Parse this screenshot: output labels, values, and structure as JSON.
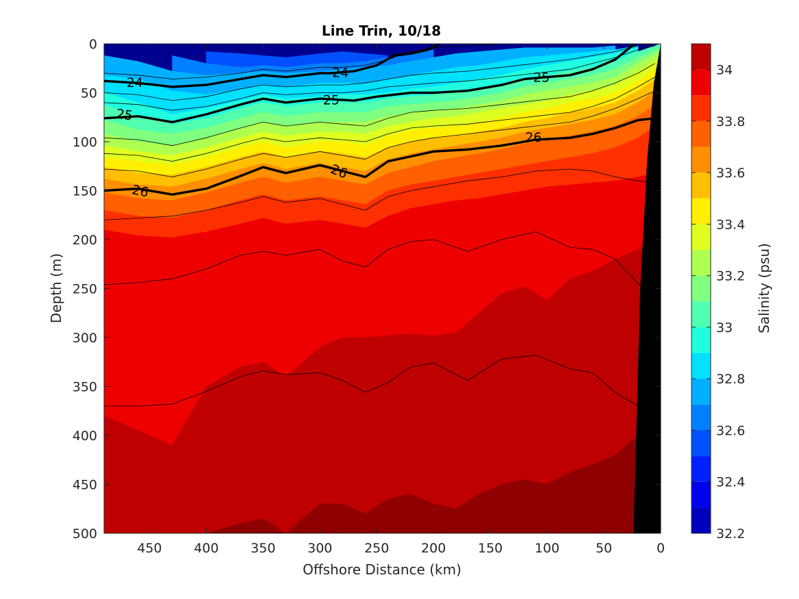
{
  "chart_data": {
    "type": "heatmap",
    "title": "Line Trin, 10/18",
    "xlabel": "Offshore Distance (km)",
    "ylabel": "Depth (m)",
    "colorbar_label": "Salinity (psu)",
    "xlim": [
      490,
      0
    ],
    "ylim": [
      0,
      500
    ],
    "x_reversed": true,
    "y_reversed": true,
    "x_ticks": [
      450,
      400,
      350,
      300,
      250,
      200,
      150,
      100,
      50,
      0
    ],
    "y_ticks": [
      0,
      50,
      100,
      150,
      200,
      250,
      300,
      350,
      400,
      450,
      500
    ],
    "colorbar": {
      "min": 32.2,
      "max": 34.1,
      "ticks": [
        32.2,
        32.4,
        32.6,
        32.8,
        33,
        33.2,
        33.4,
        33.6,
        33.8,
        34
      ],
      "levels": [
        32.2,
        32.3,
        32.4,
        32.5,
        32.6,
        32.7,
        32.8,
        32.9,
        33.0,
        33.1,
        33.2,
        33.3,
        33.4,
        33.5,
        33.6,
        33.7,
        33.8,
        33.9,
        34.0,
        34.1
      ],
      "colors": [
        "#00008F",
        "#0000BF",
        "#0000EF",
        "#0020FF",
        "#0050FF",
        "#0080FF",
        "#00B0FF",
        "#00E0FF",
        "#20FFDF",
        "#50FFAF",
        "#80FF80",
        "#AFFF50",
        "#DFFF20",
        "#FFEF00",
        "#FFBF00",
        "#FF8F00",
        "#FF6000",
        "#FF3000",
        "#EF0000",
        "#BF0000",
        "#8F0000"
      ]
    },
    "x": [
      490,
      460,
      430,
      400,
      370,
      350,
      330,
      300,
      280,
      260,
      240,
      220,
      200,
      180,
      160,
      140,
      120,
      100,
      80,
      60,
      40,
      20,
      0
    ],
    "salinity_boundaries": [
      {
        "level": 32.5,
        "depth": [
          null,
          null,
          null,
          8,
          10,
          12,
          14,
          10,
          8,
          10,
          12,
          null,
          null,
          null,
          null,
          null,
          null,
          null,
          null,
          null,
          null,
          null,
          null
        ]
      },
      {
        "level": 32.6,
        "depth": [
          null,
          null,
          12,
          20,
          24,
          22,
          24,
          20,
          20,
          18,
          14,
          10,
          6,
          null,
          null,
          null,
          null,
          null,
          null,
          null,
          null,
          null,
          null
        ]
      },
      {
        "level": 32.7,
        "depth": [
          12,
          18,
          28,
          32,
          30,
          28,
          30,
          28,
          26,
          24,
          22,
          18,
          14,
          10,
          8,
          6,
          4,
          4,
          4,
          4,
          2,
          null,
          null
        ]
      },
      {
        "level": 32.8,
        "depth": [
          32,
          36,
          48,
          52,
          46,
          42,
          44,
          40,
          40,
          40,
          36,
          32,
          28,
          24,
          22,
          18,
          14,
          12,
          10,
          8,
          6,
          2,
          null
        ]
      },
      {
        "level": 32.9,
        "depth": [
          50,
          60,
          72,
          66,
          58,
          52,
          56,
          54,
          52,
          52,
          50,
          46,
          44,
          40,
          36,
          32,
          26,
          22,
          18,
          14,
          10,
          4,
          null
        ]
      },
      {
        "level": 33.0,
        "depth": [
          62,
          74,
          82,
          76,
          66,
          60,
          64,
          60,
          60,
          60,
          56,
          54,
          52,
          50,
          46,
          42,
          36,
          32,
          28,
          24,
          18,
          8,
          0
        ]
      },
      {
        "level": 33.1,
        "depth": [
          78,
          88,
          92,
          86,
          76,
          70,
          74,
          70,
          70,
          70,
          64,
          62,
          60,
          58,
          54,
          50,
          44,
          40,
          36,
          32,
          26,
          14,
          4
        ]
      },
      {
        "level": 33.2,
        "depth": [
          92,
          100,
          104,
          96,
          86,
          80,
          84,
          80,
          80,
          80,
          74,
          70,
          68,
          66,
          62,
          58,
          52,
          48,
          44,
          40,
          34,
          20,
          8
        ]
      },
      {
        "level": 33.3,
        "depth": [
          104,
          110,
          114,
          106,
          96,
          90,
          94,
          90,
          90,
          92,
          84,
          80,
          76,
          74,
          70,
          66,
          62,
          58,
          52,
          48,
          42,
          28,
          14
        ]
      },
      {
        "level": 33.4,
        "depth": [
          116,
          120,
          124,
          116,
          106,
          100,
          106,
          100,
          100,
          104,
          94,
          88,
          86,
          84,
          80,
          76,
          70,
          66,
          60,
          56,
          50,
          38,
          22
        ]
      },
      {
        "level": 33.5,
        "depth": [
          126,
          132,
          134,
          126,
          116,
          110,
          116,
          110,
          112,
          116,
          106,
          100,
          96,
          94,
          90,
          86,
          80,
          76,
          70,
          66,
          60,
          48,
          32
        ]
      },
      {
        "level": 33.6,
        "depth": [
          138,
          144,
          146,
          138,
          128,
          122,
          128,
          122,
          126,
          130,
          118,
          112,
          108,
          104,
          100,
          96,
          90,
          86,
          82,
          78,
          72,
          60,
          44
        ]
      },
      {
        "level": 33.7,
        "depth": [
          152,
          158,
          160,
          152,
          142,
          136,
          142,
          136,
          140,
          144,
          132,
          126,
          120,
          116,
          112,
          108,
          102,
          98,
          94,
          90,
          84,
          74,
          58
        ]
      },
      {
        "level": 33.8,
        "depth": [
          170,
          176,
          178,
          170,
          160,
          154,
          160,
          156,
          160,
          164,
          150,
          144,
          140,
          136,
          132,
          128,
          124,
          120,
          116,
          112,
          106,
          96,
          80
        ]
      },
      {
        "level": 33.9,
        "depth": [
          190,
          196,
          198,
          192,
          184,
          178,
          184,
          180,
          184,
          188,
          176,
          168,
          164,
          160,
          158,
          154,
          150,
          146,
          144,
          142,
          140,
          136,
          130
        ]
      },
      {
        "level": 34.0,
        "depth": [
          380,
          395,
          410,
          350,
          330,
          325,
          340,
          310,
          300,
          300,
          298,
          296,
          298,
          295,
          275,
          255,
          248,
          262,
          240,
          232,
          220,
          210,
          200
        ]
      },
      {
        "level": 34.1,
        "depth": [
          500,
          500,
          500,
          500,
          490,
          485,
          500,
          470,
          470,
          480,
          465,
          460,
          470,
          475,
          460,
          450,
          445,
          450,
          438,
          430,
          420,
          400,
          380
        ]
      }
    ],
    "density_contours": [
      {
        "label": "24",
        "bold": true,
        "x": [
          490,
          460,
          430,
          400,
          370,
          350,
          330,
          300,
          290,
          270,
          250,
          235,
          220,
          205,
          195
        ],
        "depth": [
          38,
          40,
          44,
          42,
          36,
          32,
          34,
          30,
          30,
          28,
          22,
          12,
          10,
          6,
          0
        ]
      },
      {
        "label": "25",
        "bold": true,
        "x": [
          490,
          460,
          430,
          400,
          370,
          350,
          330,
          300,
          270,
          250,
          220,
          200,
          170,
          140,
          120,
          100,
          80,
          60,
          40,
          23
        ],
        "depth": [
          76,
          74,
          80,
          72,
          62,
          56,
          60,
          56,
          58,
          54,
          50,
          50,
          48,
          42,
          36,
          34,
          32,
          26,
          16,
          0
        ]
      },
      {
        "label": "26",
        "bold": true,
        "x": [
          490,
          460,
          430,
          400,
          370,
          350,
          330,
          300,
          280,
          260,
          240,
          220,
          200,
          170,
          140,
          110,
          80,
          60,
          40,
          20,
          5
        ],
        "depth": [
          150,
          148,
          154,
          148,
          135,
          126,
          132,
          124,
          130,
          136,
          120,
          115,
          110,
          108,
          104,
          98,
          96,
          92,
          86,
          78,
          76
        ]
      },
      {
        "label": "",
        "bold": false,
        "x": [
          490,
          460,
          430,
          400,
          370,
          350,
          330,
          300,
          280,
          260,
          240,
          220,
          200,
          170,
          140,
          110,
          80,
          60,
          40,
          20,
          5
        ],
        "depth": [
          30,
          32,
          36,
          34,
          30,
          26,
          28,
          24,
          24,
          22,
          16,
          8,
          4,
          2,
          0,
          null,
          null,
          null,
          null,
          null,
          null
        ]
      },
      {
        "label": "",
        "bold": false,
        "x": [
          490,
          460,
          430,
          400,
          370,
          350,
          330,
          300,
          280,
          260,
          240,
          220,
          200,
          170,
          140,
          110,
          80,
          60,
          40,
          20,
          5
        ],
        "depth": [
          50,
          52,
          58,
          54,
          46,
          42,
          44,
          42,
          42,
          40,
          36,
          32,
          30,
          28,
          24,
          20,
          16,
          12,
          8,
          2,
          0
        ]
      },
      {
        "label": "",
        "bold": false,
        "x": [
          490,
          460,
          430,
          400,
          370,
          350,
          330,
          300,
          280,
          260,
          240,
          220,
          200,
          170,
          140,
          110,
          80,
          60,
          40,
          20,
          5
        ],
        "depth": [
          60,
          62,
          68,
          64,
          56,
          50,
          52,
          50,
          50,
          48,
          44,
          42,
          40,
          38,
          34,
          30,
          26,
          20,
          14,
          6,
          2
        ]
      },
      {
        "label": "",
        "bold": false,
        "x": [
          490,
          460,
          430,
          400,
          370,
          350,
          330,
          300,
          280,
          260,
          240,
          220,
          200,
          170,
          140,
          110,
          80,
          60,
          40,
          20,
          5
        ],
        "depth": [
          96,
          98,
          104,
          96,
          86,
          80,
          84,
          80,
          82,
          84,
          76,
          70,
          68,
          66,
          62,
          58,
          54,
          48,
          40,
          30,
          20
        ]
      },
      {
        "label": "",
        "bold": false,
        "x": [
          490,
          460,
          430,
          400,
          370,
          350,
          330,
          300,
          280,
          260,
          240,
          220,
          200,
          170,
          140,
          110,
          80,
          60,
          40,
          20,
          5
        ],
        "depth": [
          112,
          114,
          120,
          112,
          102,
          96,
          100,
          96,
          98,
          100,
          92,
          86,
          84,
          82,
          78,
          74,
          70,
          64,
          56,
          44,
          34
        ]
      },
      {
        "label": "",
        "bold": false,
        "x": [
          490,
          460,
          430,
          400,
          370,
          350,
          330,
          300,
          280,
          260,
          240,
          220,
          200,
          170,
          140,
          110,
          80,
          60,
          40,
          20,
          5
        ],
        "depth": [
          128,
          130,
          136,
          128,
          118,
          112,
          116,
          110,
          114,
          118,
          106,
          100,
          96,
          92,
          88,
          84,
          80,
          74,
          66,
          56,
          48
        ]
      },
      {
        "label": "",
        "bold": false,
        "x": [
          490,
          460,
          430,
          400,
          370,
          350,
          330,
          300,
          280,
          260,
          240,
          220,
          200,
          170,
          140,
          110,
          80,
          60,
          40,
          20,
          5
        ],
        "depth": [
          180,
          178,
          176,
          170,
          162,
          156,
          162,
          158,
          164,
          170,
          156,
          150,
          146,
          140,
          136,
          130,
          128,
          130,
          136,
          140,
          142
        ]
      },
      {
        "label": "",
        "bold": false,
        "x": [
          490,
          460,
          430,
          400,
          370,
          350,
          330,
          300,
          280,
          260,
          240,
          220,
          200,
          170,
          140,
          110,
          80,
          60,
          40,
          20,
          10
        ],
        "depth": [
          246,
          244,
          240,
          230,
          216,
          212,
          216,
          210,
          222,
          228,
          210,
          202,
          200,
          212,
          200,
          192,
          208,
          210,
          220,
          245,
          250
        ]
      },
      {
        "label": "",
        "bold": false,
        "x": [
          490,
          460,
          430,
          400,
          370,
          350,
          330,
          300,
          280,
          260,
          240,
          220,
          200,
          170,
          140,
          110,
          80,
          60,
          40,
          20
        ],
        "depth": [
          370,
          370,
          368,
          355,
          340,
          334,
          338,
          336,
          344,
          356,
          346,
          330,
          326,
          344,
          322,
          318,
          332,
          336,
          356,
          370
        ]
      }
    ],
    "contour_labels": [
      {
        "text": "24",
        "x": 463,
        "depth": 39,
        "rotate": 0
      },
      {
        "text": "24",
        "x": 282,
        "depth": 29,
        "rotate": 0
      },
      {
        "text": "25",
        "x": 105,
        "depth": 34,
        "rotate": 0
      },
      {
        "text": "25",
        "x": 290,
        "depth": 57,
        "rotate": 0
      },
      {
        "text": "25",
        "x": 472,
        "depth": 72,
        "rotate": 8
      },
      {
        "text": "26",
        "x": 112,
        "depth": 95,
        "rotate": 0
      },
      {
        "text": "26",
        "x": 283,
        "depth": 130,
        "rotate": 22
      },
      {
        "text": "26",
        "x": 458,
        "depth": 150,
        "rotate": 12
      }
    ],
    "topography": {
      "x": [
        24,
        18,
        12,
        6,
        0
      ],
      "depth": [
        500,
        250,
        120,
        40,
        0
      ]
    }
  }
}
